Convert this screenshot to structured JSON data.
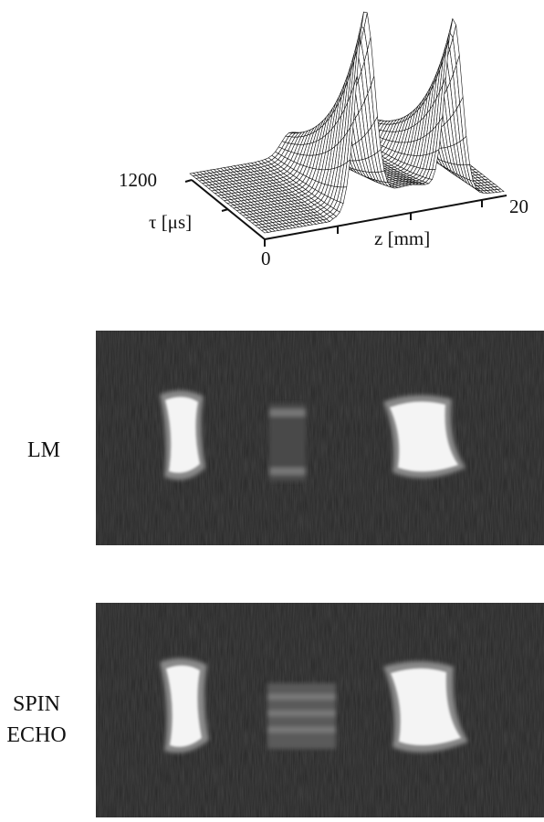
{
  "plot": {
    "tau_tick_max": "1200",
    "tau_label": "τ [μs]",
    "origin_tick": "0",
    "z_label": "z [mm]",
    "z_tick_max": "20"
  },
  "panels": [
    {
      "label_lines": [
        "LM"
      ]
    },
    {
      "label_lines": [
        "SPIN",
        "ECHO"
      ]
    }
  ]
}
